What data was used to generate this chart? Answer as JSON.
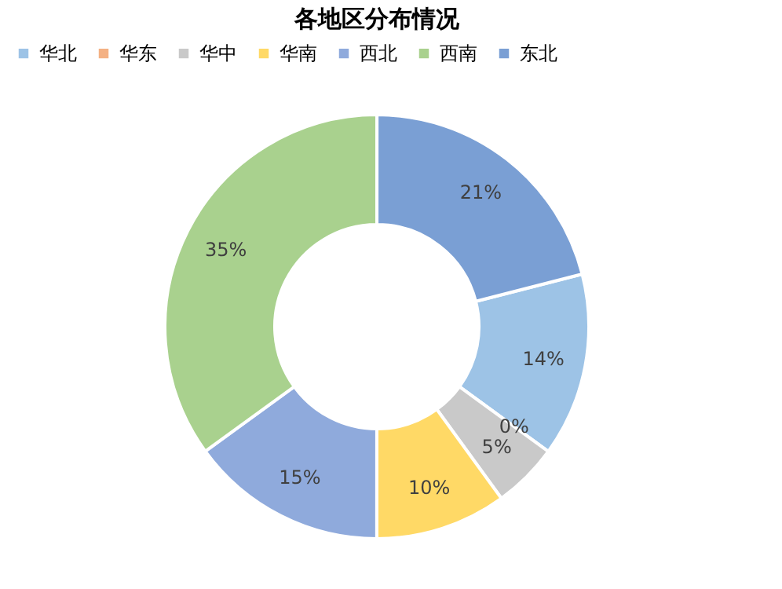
{
  "chart_data": {
    "type": "donut",
    "title": "各地区分布情况",
    "categories": [
      "华北",
      "华东",
      "华中",
      "华南",
      "西北",
      "西南",
      "东北"
    ],
    "values": [
      14,
      0,
      5,
      10,
      15,
      35,
      21
    ],
    "value_labels": [
      "14%",
      "0%",
      "5%",
      "10%",
      "15%",
      "35%",
      "21%"
    ],
    "colors": [
      "#9dc3e6",
      "#f4b183",
      "#c9c9c9",
      "#ffd966",
      "#8faadc",
      "#a9d18e",
      "#7a9fd4"
    ],
    "legend": "top"
  }
}
